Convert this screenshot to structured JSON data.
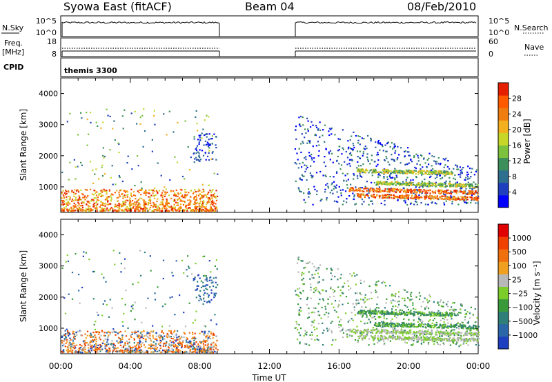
{
  "header": {
    "station": "Syowa East (fitACF)",
    "beam": "Beam 04",
    "date": "08/Feb/2010"
  },
  "strip_labels": {
    "nsky": "N.Sky",
    "nsearch": "N.Search",
    "freq": "Freq.",
    "freq_unit": "[MHz]",
    "nave": "Nave",
    "cpid": "CPID",
    "cpid_value": "themis 3300"
  },
  "strip_ticks": {
    "noise_left": [
      "10^5",
      "10^0"
    ],
    "noise_right": [
      "10^5",
      "10^0"
    ],
    "freq_left": [
      "18",
      "8"
    ],
    "nave_right": [
      "60",
      "0"
    ]
  },
  "chart_data": [
    {
      "type": "heatmap",
      "title": "",
      "xlabel": "Time UT",
      "ylabel": "Slant Range [km]",
      "xlim": [
        0,
        24
      ],
      "ylim": [
        180,
        4500
      ],
      "x_ticks": [
        "00:00",
        "04:00",
        "08:00",
        "12:00",
        "16:00",
        "20:00",
        "00:00"
      ],
      "y_ticks": [
        1000,
        2000,
        3000,
        4000
      ],
      "colorbar": {
        "label": "Power [dB]",
        "ticks": [
          4,
          8,
          12,
          16,
          20,
          24,
          28
        ],
        "colors": [
          "#0000ff",
          "#1f3fbf",
          "#2e6e8e",
          "#3c8f5a",
          "#7cc23c",
          "#c8d62a",
          "#f2b01e",
          "#f07d10",
          "#ff5a00",
          "#e61e00"
        ]
      },
      "data_gaps": [
        [
          9.0,
          13.4
        ]
      ]
    },
    {
      "type": "heatmap",
      "title": "",
      "xlabel": "Time UT",
      "ylabel": "Slant Range [km]",
      "xlim": [
        0,
        24
      ],
      "ylim": [
        180,
        4500
      ],
      "x_ticks": [
        "00:00",
        "04:00",
        "08:00",
        "12:00",
        "16:00",
        "20:00",
        "00:00"
      ],
      "y_ticks": [
        1000,
        2000,
        3000,
        4000
      ],
      "colorbar": {
        "label": "Velocity [m s⁻¹]",
        "ticks": [
          "1000",
          "500",
          "100",
          "25",
          "−25",
          "−100",
          "−500",
          "−1000"
        ],
        "colors": [
          "#1e3fbf",
          "#2a66a8",
          "#2f7f78",
          "#3a9a3a",
          "#7ccd2a",
          "#b8b8b8",
          "#f0a020",
          "#f07010",
          "#f04000",
          "#e00000"
        ]
      },
      "data_gaps": [
        [
          9.0,
          13.4
        ]
      ]
    }
  ]
}
